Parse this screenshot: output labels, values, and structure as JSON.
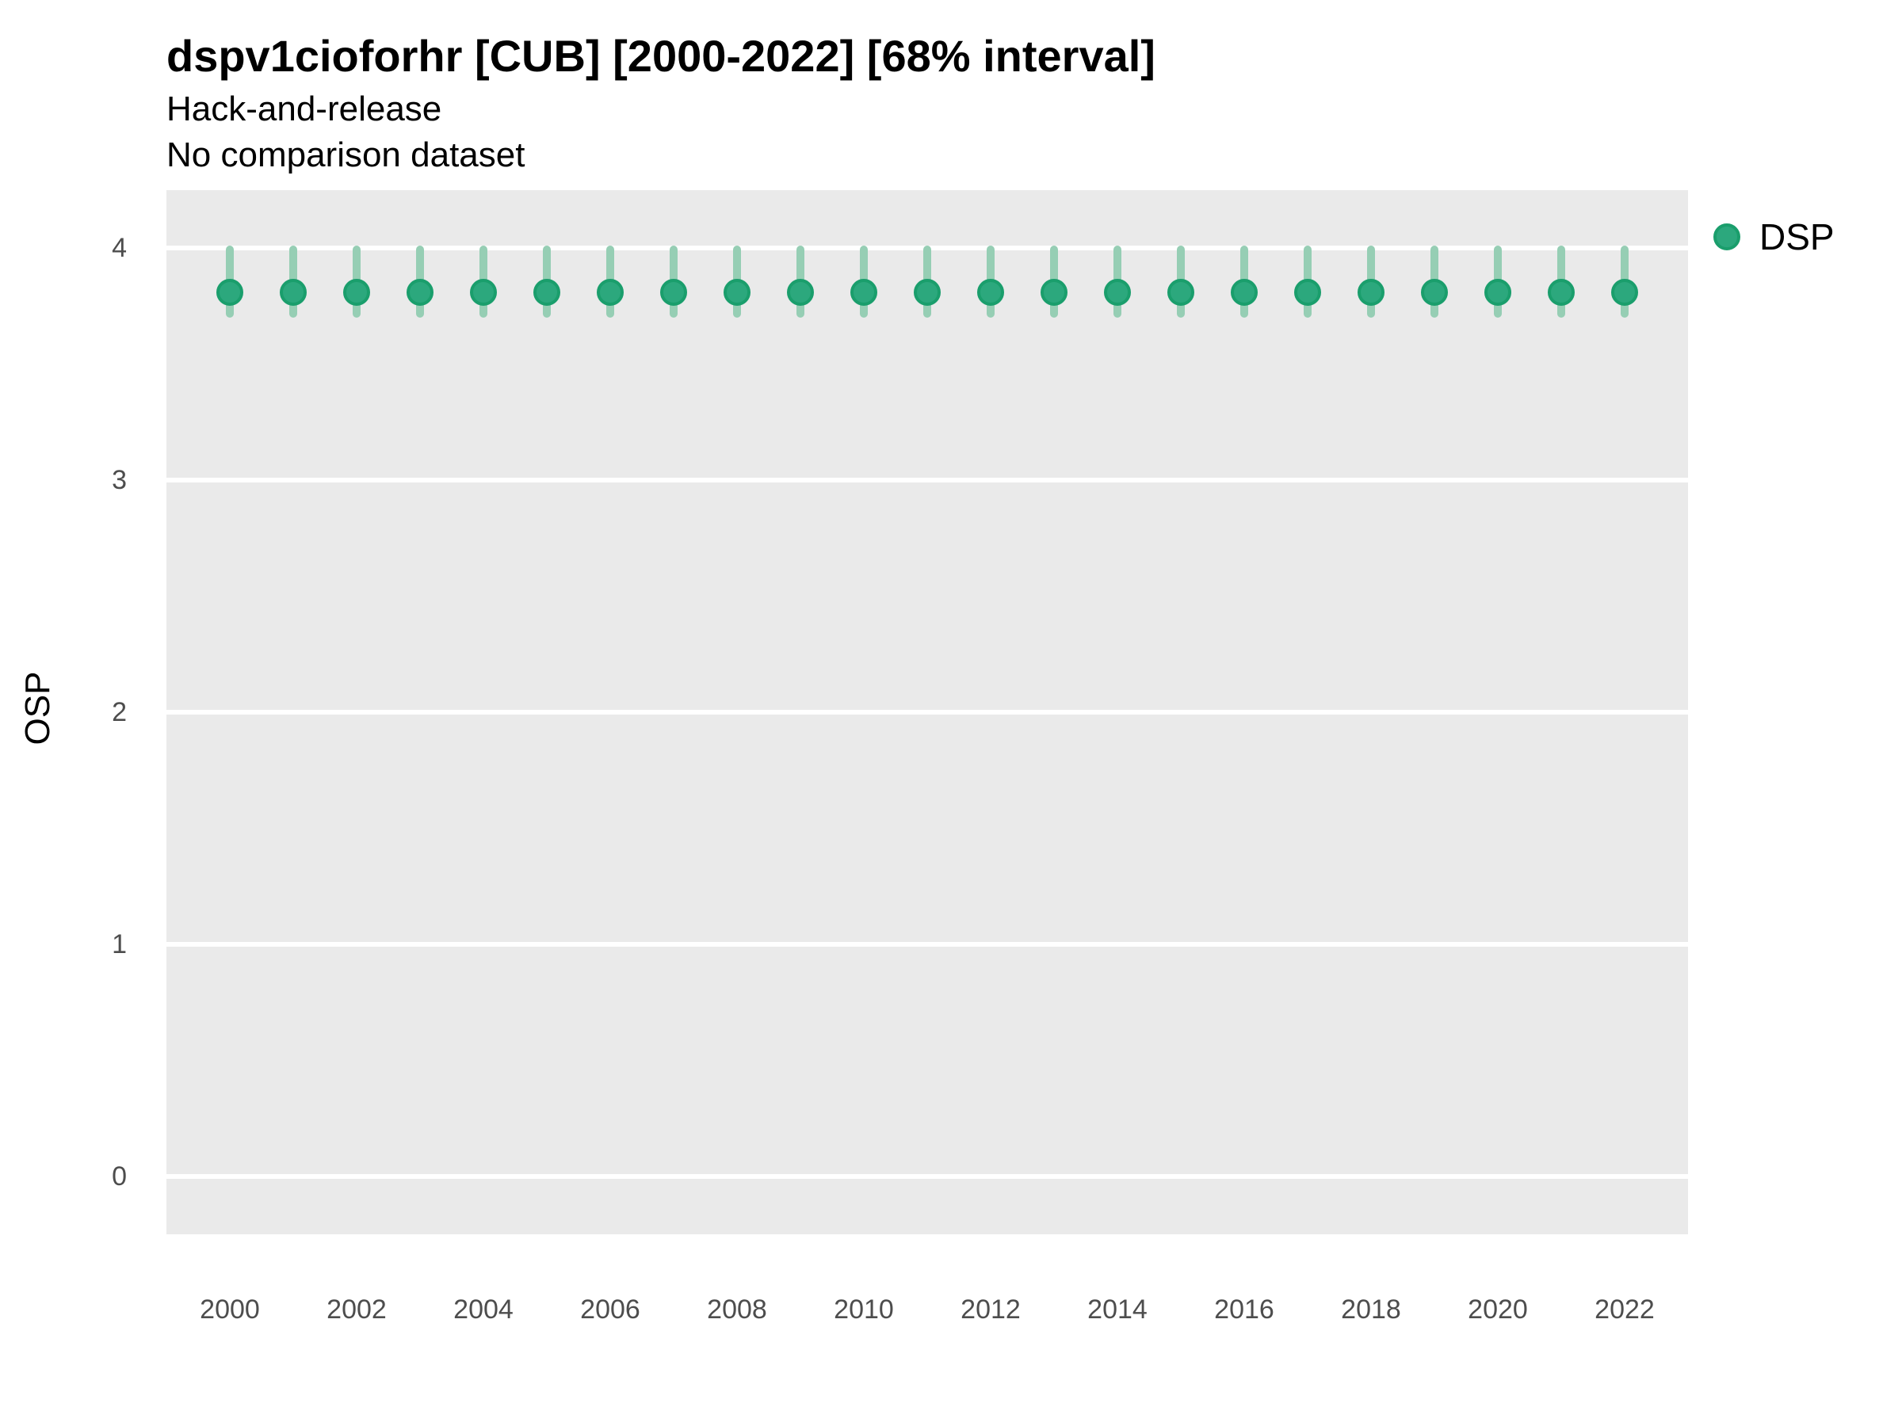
{
  "chart_data": {
    "type": "scatter",
    "subtype": "point-interval",
    "title": "dspv1cioforhr [CUB] [2000-2022] [68% interval]",
    "subtitle_line1": "Hack-and-release",
    "subtitle_line2": "No comparison dataset",
    "xlabel": "",
    "ylabel": "OSP",
    "interval_level": "68%",
    "x": [
      2000,
      2001,
      2002,
      2003,
      2004,
      2005,
      2006,
      2007,
      2008,
      2009,
      2010,
      2011,
      2012,
      2013,
      2014,
      2015,
      2016,
      2017,
      2018,
      2019,
      2020,
      2021,
      2022
    ],
    "series": [
      {
        "name": "DSP",
        "values": [
          3.81,
          3.81,
          3.81,
          3.81,
          3.81,
          3.81,
          3.81,
          3.81,
          3.81,
          3.81,
          3.81,
          3.81,
          3.81,
          3.81,
          3.81,
          3.81,
          3.81,
          3.81,
          3.81,
          3.81,
          3.81,
          3.81,
          3.81
        ],
        "lower": [
          3.7,
          3.7,
          3.7,
          3.7,
          3.7,
          3.7,
          3.7,
          3.7,
          3.7,
          3.7,
          3.7,
          3.7,
          3.7,
          3.7,
          3.7,
          3.7,
          3.7,
          3.7,
          3.7,
          3.7,
          3.7,
          3.7,
          3.7
        ],
        "upper": [
          4.01,
          4.01,
          4.01,
          4.01,
          4.01,
          4.01,
          4.01,
          4.01,
          4.01,
          4.01,
          4.01,
          4.01,
          4.01,
          4.01,
          4.01,
          4.01,
          4.01,
          4.01,
          4.01,
          4.01,
          4.01,
          4.01,
          4.01
        ]
      }
    ],
    "ylim": [
      -0.25,
      4.25
    ],
    "yticks": [
      0,
      1,
      2,
      3,
      4
    ],
    "xticks": [
      2000,
      2002,
      2004,
      2006,
      2008,
      2010,
      2012,
      2014,
      2016,
      2018,
      2020,
      2022
    ],
    "grid": "major-y-only",
    "legend_position": "right-top",
    "colors": {
      "panel_background": "#EAEAEA",
      "gridline": "#FFFFFF",
      "point_fill": "#2CA87D",
      "point_border": "#1A9E6C",
      "interval_line": "#96CEB4",
      "tick_label": "#4D4D4D",
      "text": "#000000"
    }
  }
}
